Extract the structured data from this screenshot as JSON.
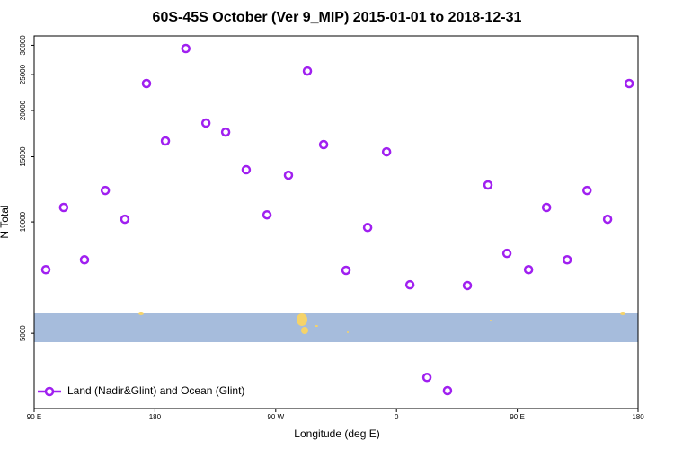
{
  "chart_data": {
    "type": "scatter",
    "title": "60S-45S October (Ver 9_MIP)   2015-01-01 to 2018-12-31",
    "x_label": "Longitude (deg E)",
    "y_label": "N Total",
    "x": [
      98.7,
      112,
      127.5,
      143,
      157.6,
      173.7,
      187.8,
      203,
      218,
      232.7,
      248,
      263.5,
      279.5,
      293.6,
      305.7,
      322.4,
      338.5,
      352.6,
      370,
      382.7,
      398,
      412.8,
      428.2,
      442.3,
      458.4,
      471.8,
      487.2,
      502,
      517.3,
      533.4
    ],
    "series": [
      {
        "name": "Land (Nadir&Glint) and Ocean (Glint)",
        "color": "#a020f0",
        "values": [
          7430,
          10940,
          7900,
          12160,
          10170,
          23650,
          16540,
          29400,
          18490,
          17480,
          13830,
          10450,
          13370,
          25560,
          16170,
          7400,
          9660,
          15460,
          6760,
          3800,
          3500,
          6730,
          12580,
          8220,
          7430,
          10940,
          7900,
          12160,
          10170,
          23650
        ]
      }
    ],
    "xlim": [
      90,
      540
    ],
    "xticks": [
      {
        "value": 90,
        "label": "90 E"
      },
      {
        "value": 180,
        "label": "180"
      },
      {
        "value": 270,
        "label": "90 W"
      },
      {
        "value": 360,
        "label": "0"
      },
      {
        "value": 450,
        "label": "90 E"
      },
      {
        "value": 540,
        "label": "180"
      }
    ],
    "ylim": [
      3130,
      31800
    ],
    "yticks": [
      5000,
      10000,
      15000,
      20000,
      25000,
      30000
    ],
    "log_y": true,
    "legend_position": "lower left"
  }
}
